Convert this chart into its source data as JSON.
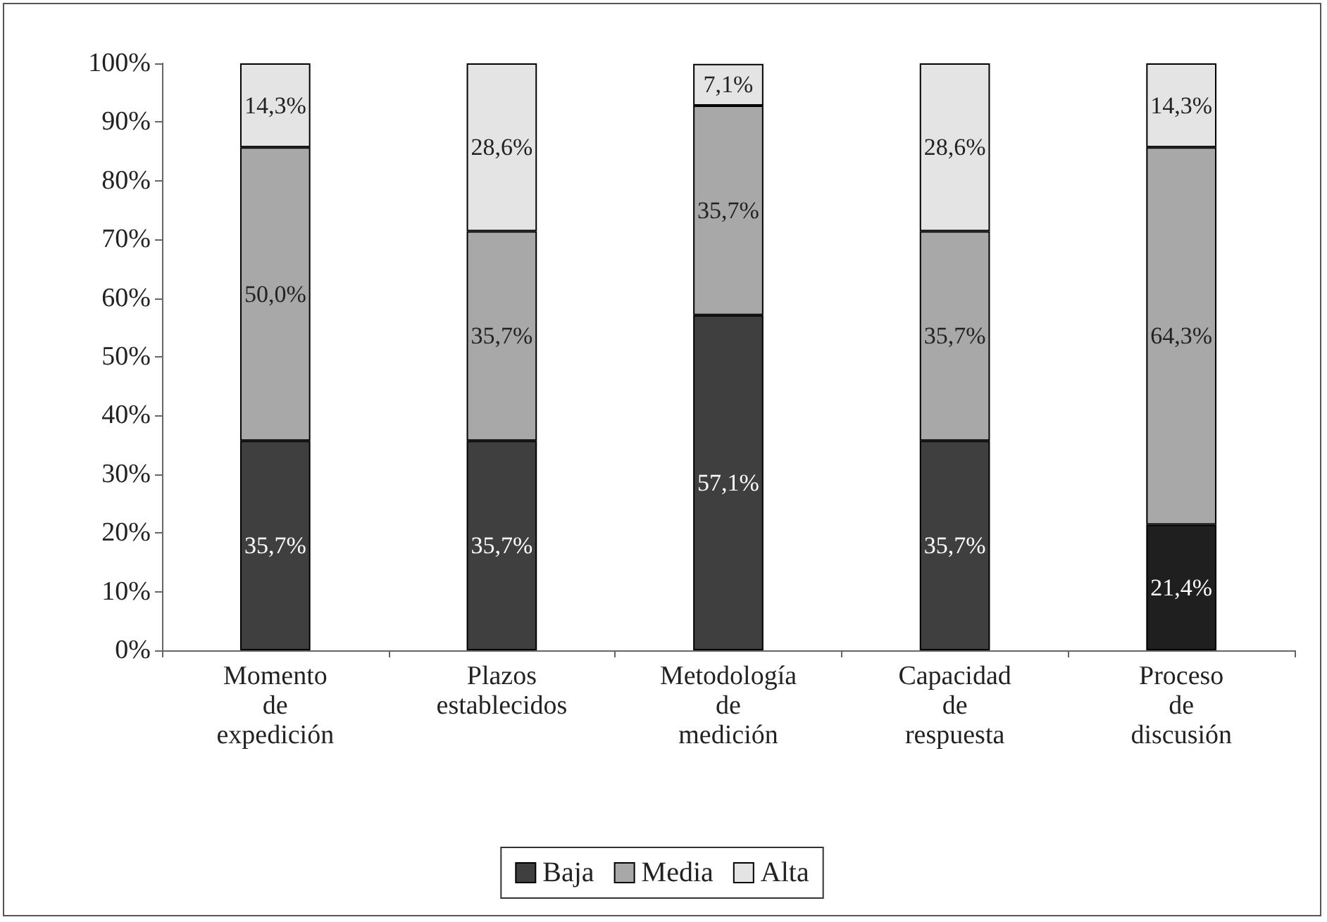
{
  "chart_data": {
    "type": "bar",
    "stacked": true,
    "categories": [
      "Momento de expedición",
      "Plazos establecidos",
      "Metodología de medición",
      "Capacidad de respuesta",
      "Proceso de discusión"
    ],
    "series": [
      {
        "name": "Baja",
        "color": "#3f3f3f",
        "colors": [
          "#3f3f3f",
          "#3f3f3f",
          "#3f3f3f",
          "#3f3f3f",
          "#1f1f1f"
        ],
        "values": [
          35.7,
          35.7,
          57.1,
          35.7,
          21.4
        ],
        "value_labels": [
          "35,7%",
          "35,7%",
          "57,1%",
          "35,7%",
          "21,4%"
        ]
      },
      {
        "name": "Media",
        "color": "#a8a8a8",
        "values": [
          50.0,
          35.7,
          35.7,
          35.7,
          64.3
        ],
        "value_labels": [
          "50,0%",
          "35,7%",
          "35,7%",
          "35,7%",
          "64,3%"
        ]
      },
      {
        "name": "Alta",
        "color": "#e4e4e4",
        "values": [
          14.3,
          28.6,
          7.1,
          28.6,
          14.3
        ],
        "value_labels": [
          "14,3%",
          "28,6%",
          "7,1%",
          "28,6%",
          "14,3%"
        ]
      }
    ],
    "ylim": [
      0,
      100
    ],
    "yticks": [
      {
        "value": 0,
        "label": "0%"
      },
      {
        "value": 10,
        "label": "10%"
      },
      {
        "value": 20,
        "label": "20%"
      },
      {
        "value": 30,
        "label": "30%"
      },
      {
        "value": 40,
        "label": "40%"
      },
      {
        "value": 50,
        "label": "50%"
      },
      {
        "value": 60,
        "label": "60%"
      },
      {
        "value": 70,
        "label": "70%"
      },
      {
        "value": 80,
        "label": "80%"
      },
      {
        "value": 90,
        "label": "90%"
      },
      {
        "value": 100,
        "label": "100%"
      }
    ],
    "grid": false,
    "legend": "bottom"
  }
}
